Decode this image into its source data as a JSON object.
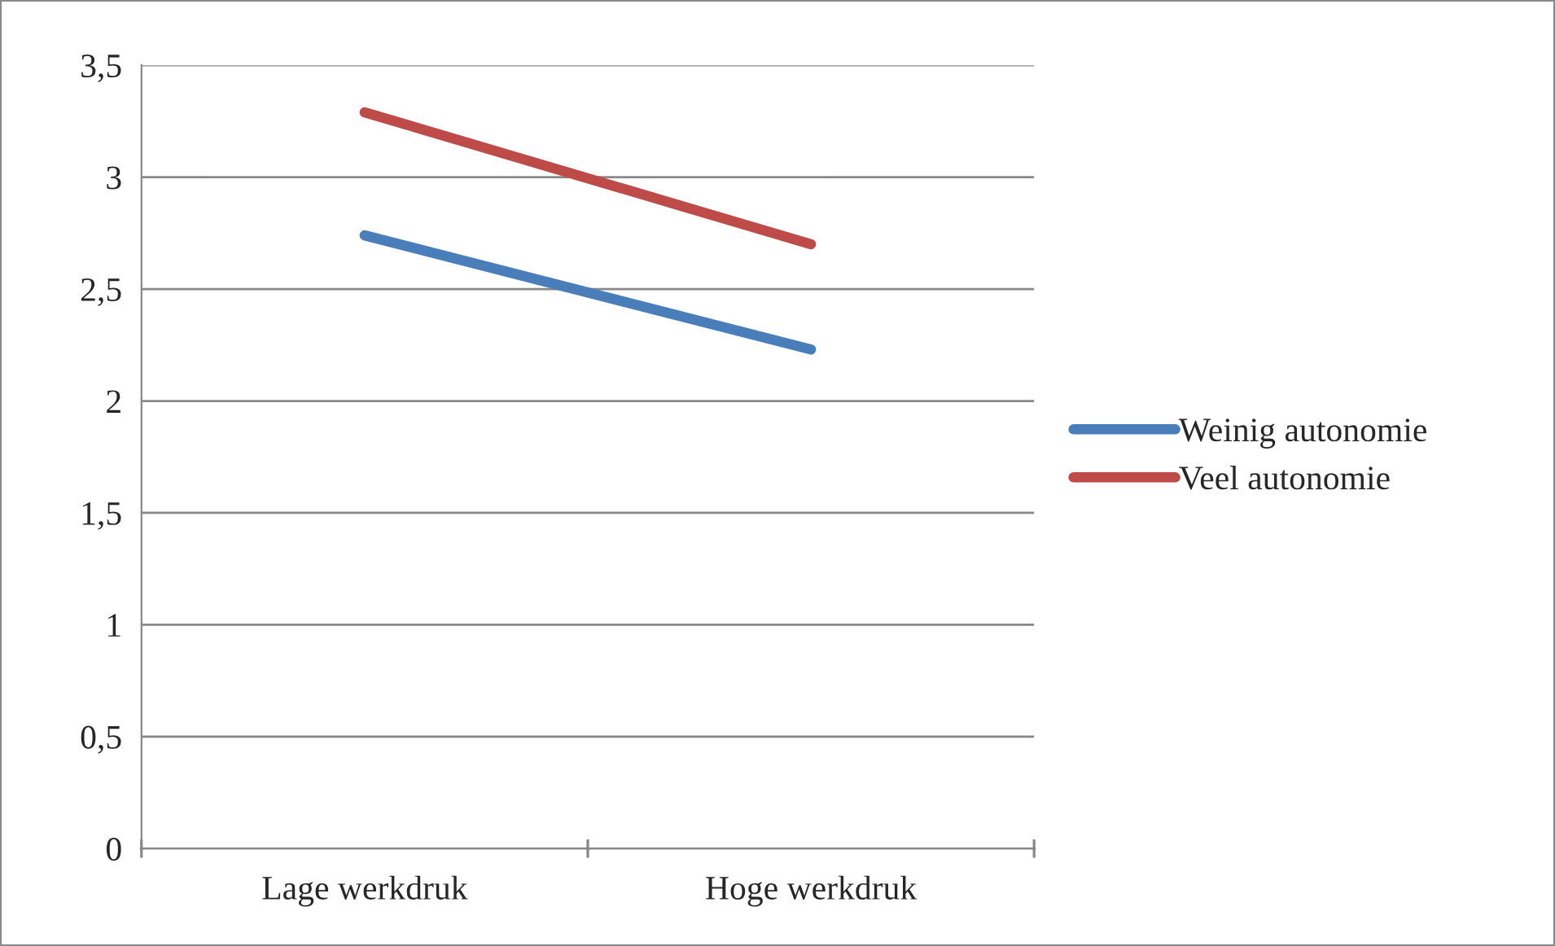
{
  "chart_data": {
    "type": "line",
    "categories": [
      "Lage werkdruk",
      "Hoge werkdruk"
    ],
    "series": [
      {
        "name": "Weinig autonomie",
        "color": "#4a7ebb",
        "values": [
          2.74,
          2.23
        ]
      },
      {
        "name": "Veel autonomie",
        "color": "#be4b48",
        "values": [
          3.29,
          2.7
        ]
      }
    ],
    "ylim": [
      0,
      3.5
    ],
    "yticks": [
      0,
      {
        "value": 0.5,
        "label": "0,5"
      },
      1,
      {
        "value": 1.5,
        "label": "1,5"
      },
      2,
      {
        "value": 2.5,
        "label": "2,5"
      },
      3,
      {
        "value": 3.5,
        "label": "3,5"
      }
    ],
    "grid": "y",
    "legend": "right",
    "marker": "none",
    "line_style": "solid"
  }
}
